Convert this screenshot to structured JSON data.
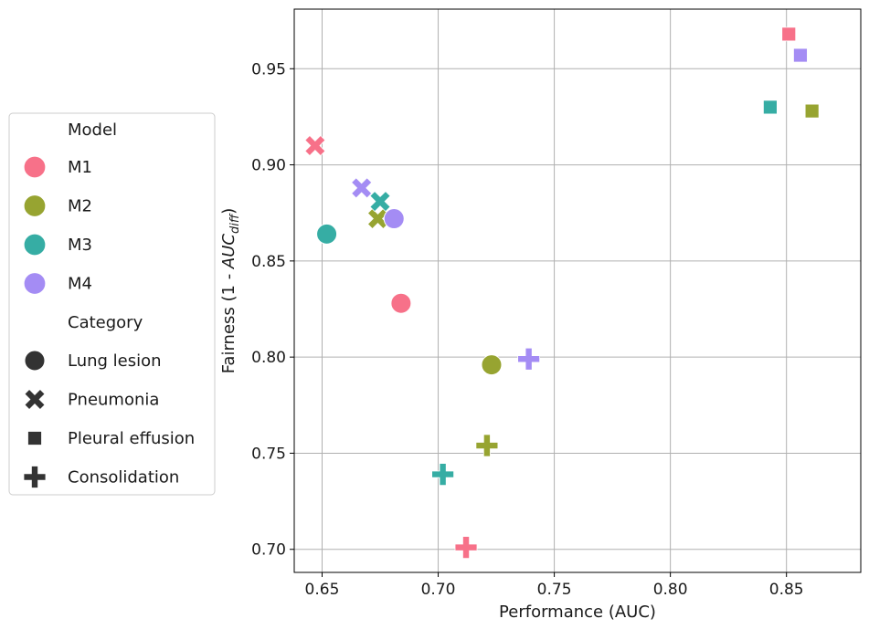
{
  "chart_data": {
    "type": "scatter",
    "title": "",
    "xlabel": "Performance (AUC)",
    "ylabel_prefix": "Fairness (1 - ",
    "ylabel_math_main": "AUC",
    "ylabel_math_sub": "diff",
    "ylabel_suffix": ")",
    "xlim": [
      0.638,
      0.882
    ],
    "ylim": [
      0.688,
      0.981
    ],
    "xticks": [
      0.65,
      0.7,
      0.75,
      0.8,
      0.85
    ],
    "xtick_labels": [
      "0.65",
      "0.70",
      "0.75",
      "0.80",
      "0.85"
    ],
    "yticks": [
      0.7,
      0.75,
      0.8,
      0.85,
      0.9,
      0.95
    ],
    "ytick_labels": [
      "0.70",
      "0.75",
      "0.80",
      "0.85",
      "0.90",
      "0.95"
    ],
    "grid": true,
    "legend_position": "left of plot",
    "models": [
      {
        "name": "M1",
        "color": "#f77189"
      },
      {
        "name": "M2",
        "color": "#97a431"
      },
      {
        "name": "M3",
        "color": "#36ada4"
      },
      {
        "name": "M4",
        "color": "#a48cf4"
      }
    ],
    "categories": [
      {
        "name": "Lung lesion",
        "marker": "circle"
      },
      {
        "name": "Pneumonia",
        "marker": "x"
      },
      {
        "name": "Pleural effusion",
        "marker": "square"
      },
      {
        "name": "Consolidation",
        "marker": "plus"
      }
    ],
    "points": [
      {
        "model": "M1",
        "category": "Lung lesion",
        "x": 0.684,
        "y": 0.828
      },
      {
        "model": "M1",
        "category": "Pneumonia",
        "x": 0.647,
        "y": 0.91
      },
      {
        "model": "M1",
        "category": "Pleural effusion",
        "x": 0.851,
        "y": 0.968
      },
      {
        "model": "M1",
        "category": "Consolidation",
        "x": 0.712,
        "y": 0.701
      },
      {
        "model": "M2",
        "category": "Lung lesion",
        "x": 0.723,
        "y": 0.796
      },
      {
        "model": "M2",
        "category": "Pneumonia",
        "x": 0.674,
        "y": 0.872
      },
      {
        "model": "M2",
        "category": "Pleural effusion",
        "x": 0.861,
        "y": 0.928
      },
      {
        "model": "M2",
        "category": "Consolidation",
        "x": 0.721,
        "y": 0.754
      },
      {
        "model": "M3",
        "category": "Lung lesion",
        "x": 0.652,
        "y": 0.864
      },
      {
        "model": "M3",
        "category": "Pneumonia",
        "x": 0.675,
        "y": 0.881
      },
      {
        "model": "M3",
        "category": "Pleural effusion",
        "x": 0.843,
        "y": 0.93
      },
      {
        "model": "M3",
        "category": "Consolidation",
        "x": 0.702,
        "y": 0.739
      },
      {
        "model": "M4",
        "category": "Lung lesion",
        "x": 0.681,
        "y": 0.872
      },
      {
        "model": "M4",
        "category": "Pneumonia",
        "x": 0.667,
        "y": 0.888
      },
      {
        "model": "M4",
        "category": "Pleural effusion",
        "x": 0.856,
        "y": 0.957
      },
      {
        "model": "M4",
        "category": "Consolidation",
        "x": 0.739,
        "y": 0.799
      }
    ]
  },
  "legend": {
    "model_title": "Model",
    "category_title": "Category",
    "category_marker_color": "#333333"
  }
}
